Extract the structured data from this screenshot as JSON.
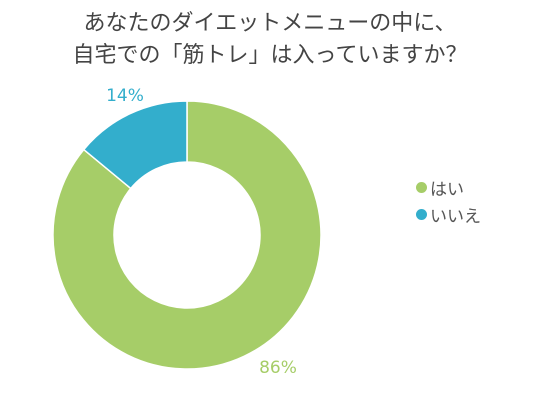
{
  "chart_data": {
    "type": "pie",
    "variant": "donut",
    "title_lines": [
      "あなたのダイエットメニューの中に、",
      "自宅での「筋トレ」は入っていますか？"
    ],
    "slices": [
      {
        "label": "はい",
        "value": 86,
        "value_label": "86%",
        "color": "#a6cd68"
      },
      {
        "label": "いいえ",
        "value": 14,
        "value_label": "14%",
        "color": "#33aecc"
      }
    ],
    "legend_position": "right"
  }
}
